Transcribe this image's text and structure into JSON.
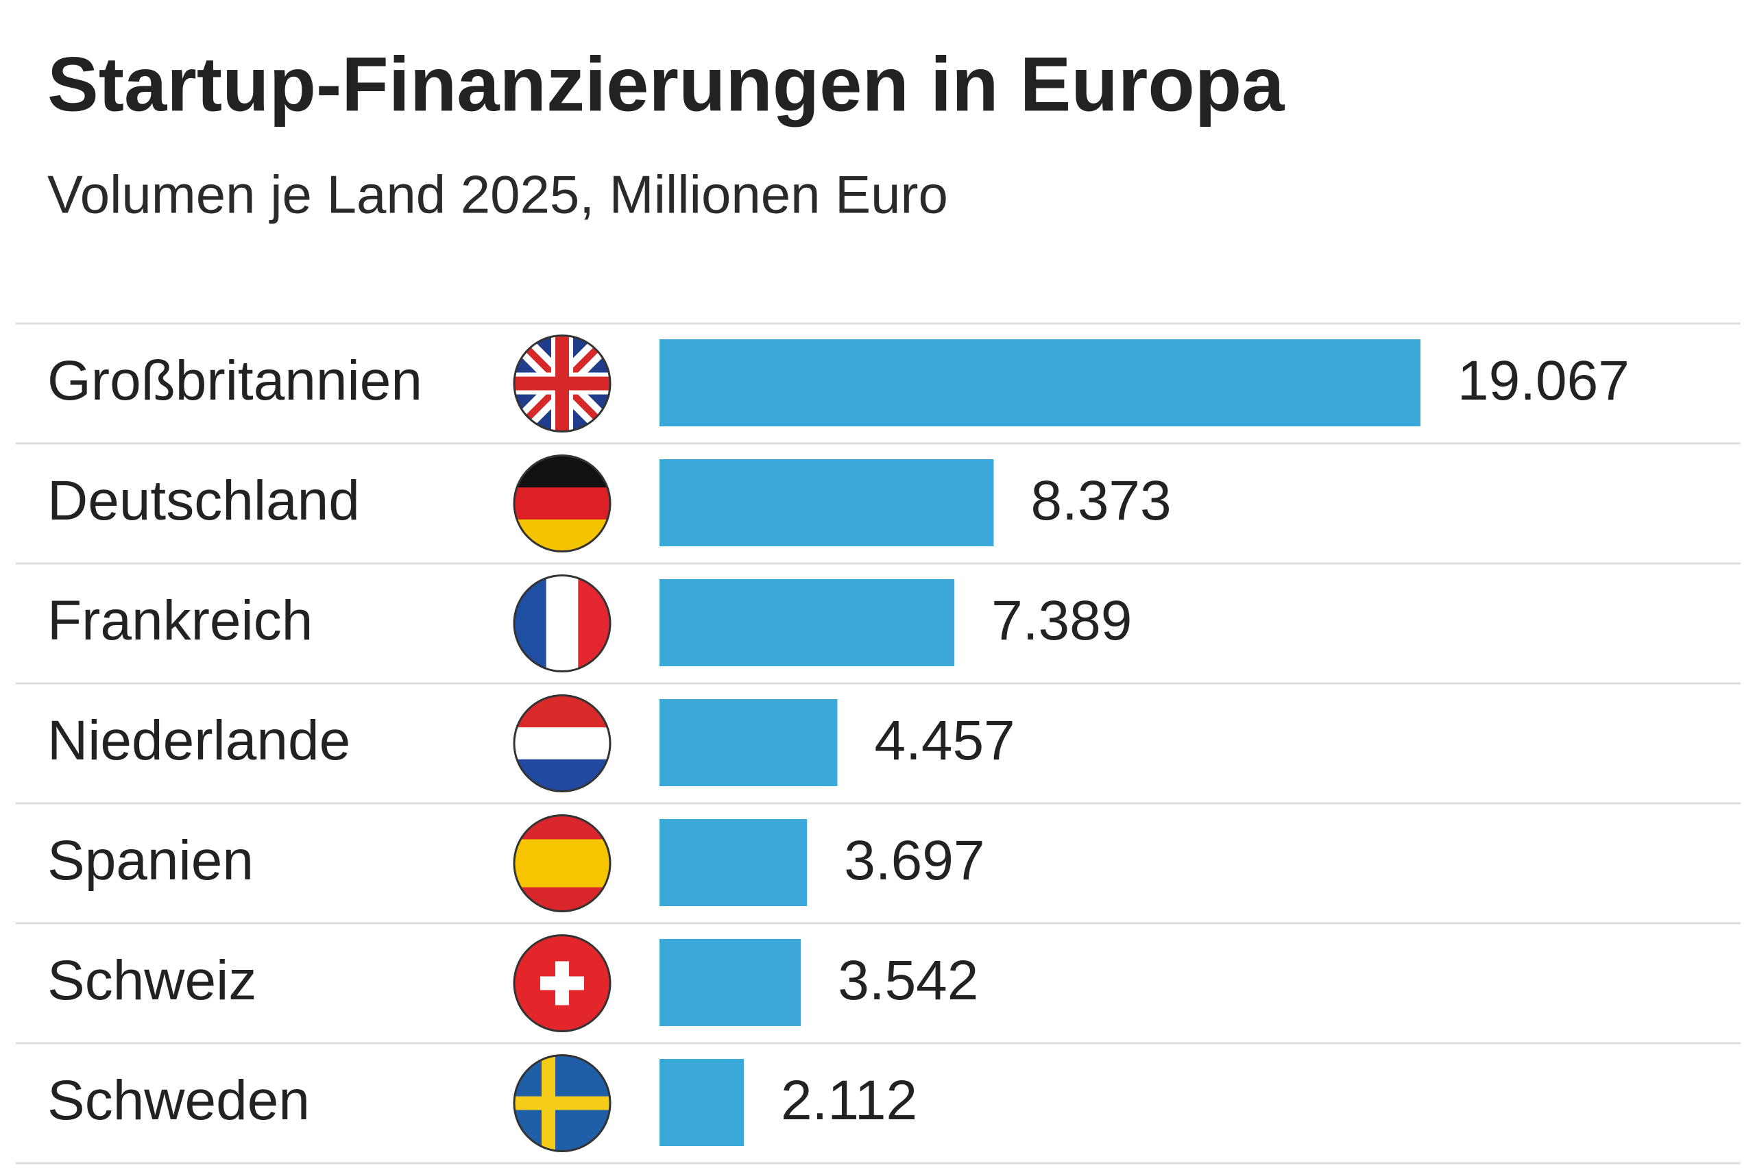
{
  "chart_data": {
    "type": "bar",
    "orientation": "horizontal",
    "title": "Startup-Finanzierungen in Europa",
    "subtitle": "Volumen je Land 2025, Millionen Euro",
    "categories": [
      "Großbritannien",
      "Deutschland",
      "Frankreich",
      "Niederlande",
      "Spanien",
      "Schweiz",
      "Schweden"
    ],
    "values": [
      19067,
      8373,
      7389,
      4457,
      3697,
      3542,
      2112
    ],
    "value_labels": [
      "19.067",
      "8.373",
      "7.389",
      "4.457",
      "3.697",
      "3.542",
      "2.112"
    ],
    "color": "#3aa8d8"
  }
}
